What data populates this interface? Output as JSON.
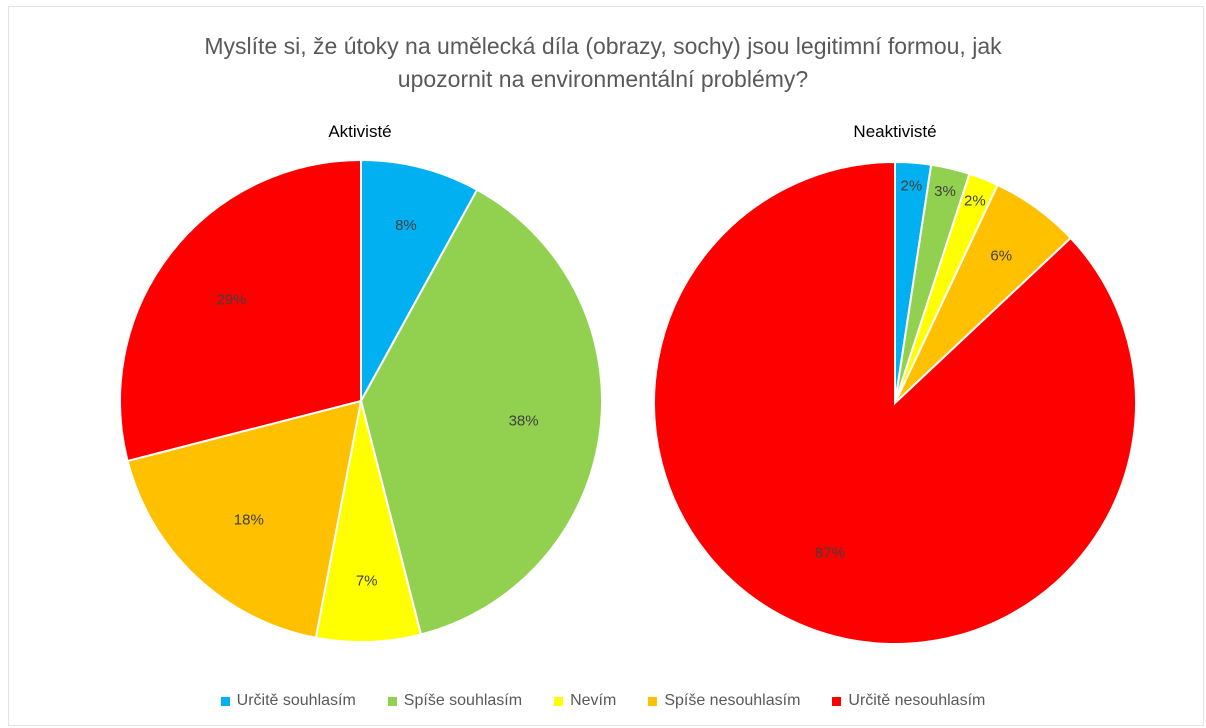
{
  "chart_data": {
    "type": "pie",
    "title_lines": [
      "Myslíte si, že útoky na umělecká díla (obrazy, sochy) jsou legitimní formou, jak",
      "upozornit na environmentální problémy?"
    ],
    "categories": [
      "Určitě souhlasím",
      "Spíše souhlasím",
      "Nevím",
      "Spíše nesouhlasím",
      "Určitě nesouhlasím"
    ],
    "colors": [
      "#00B0F0",
      "#92D050",
      "#FFFF00",
      "#FFC000",
      "#FF0000"
    ],
    "legend_position": "bottom",
    "pies": [
      {
        "name": "Aktivisté",
        "values": [
          8,
          38,
          7,
          18,
          29
        ],
        "labels": [
          "8%",
          "38%",
          "7%",
          "18%",
          "29%"
        ]
      },
      {
        "name": "Neaktivisté",
        "values": [
          2.4,
          2.6,
          2.0,
          6,
          87
        ],
        "labels": [
          "2%",
          "3%",
          "2%",
          "6%",
          "87%"
        ]
      }
    ]
  }
}
